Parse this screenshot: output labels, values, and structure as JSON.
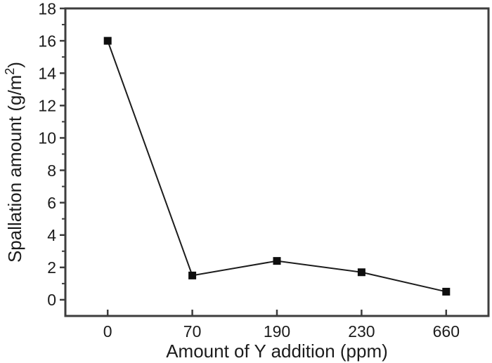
{
  "chart_data": {
    "type": "line",
    "title": "",
    "xlabel": "Amount of Y addition (ppm)",
    "ylabel": "Spallation amount (g/m²)",
    "ylabel_parts": {
      "base": "Spallation amount (g/m",
      "sup": "2",
      "close": ")"
    },
    "categories": [
      "0",
      "70",
      "190",
      "230",
      "660"
    ],
    "x_values": [
      0,
      70,
      190,
      230,
      660
    ],
    "values": [
      16,
      1.5,
      2.4,
      1.7,
      0.5
    ],
    "ylim": [
      -1,
      18
    ],
    "y_major_ticks": [
      0,
      2,
      4,
      6,
      8,
      10,
      12,
      14,
      16,
      18
    ],
    "y_minor_ticks": [
      1,
      3,
      5,
      7,
      9,
      11,
      13,
      15,
      17
    ],
    "x_spacing": "categorical-equal",
    "grid": false,
    "legend": "none",
    "marker": "filled-square",
    "marker_size": 11,
    "colors": {
      "line": "#1c1c1c",
      "marker": "#0e0e0e",
      "frame": "#3d3d3d",
      "tick": "#3d3d3d",
      "text": "#1c1c1c",
      "background": "#ffffff"
    }
  }
}
